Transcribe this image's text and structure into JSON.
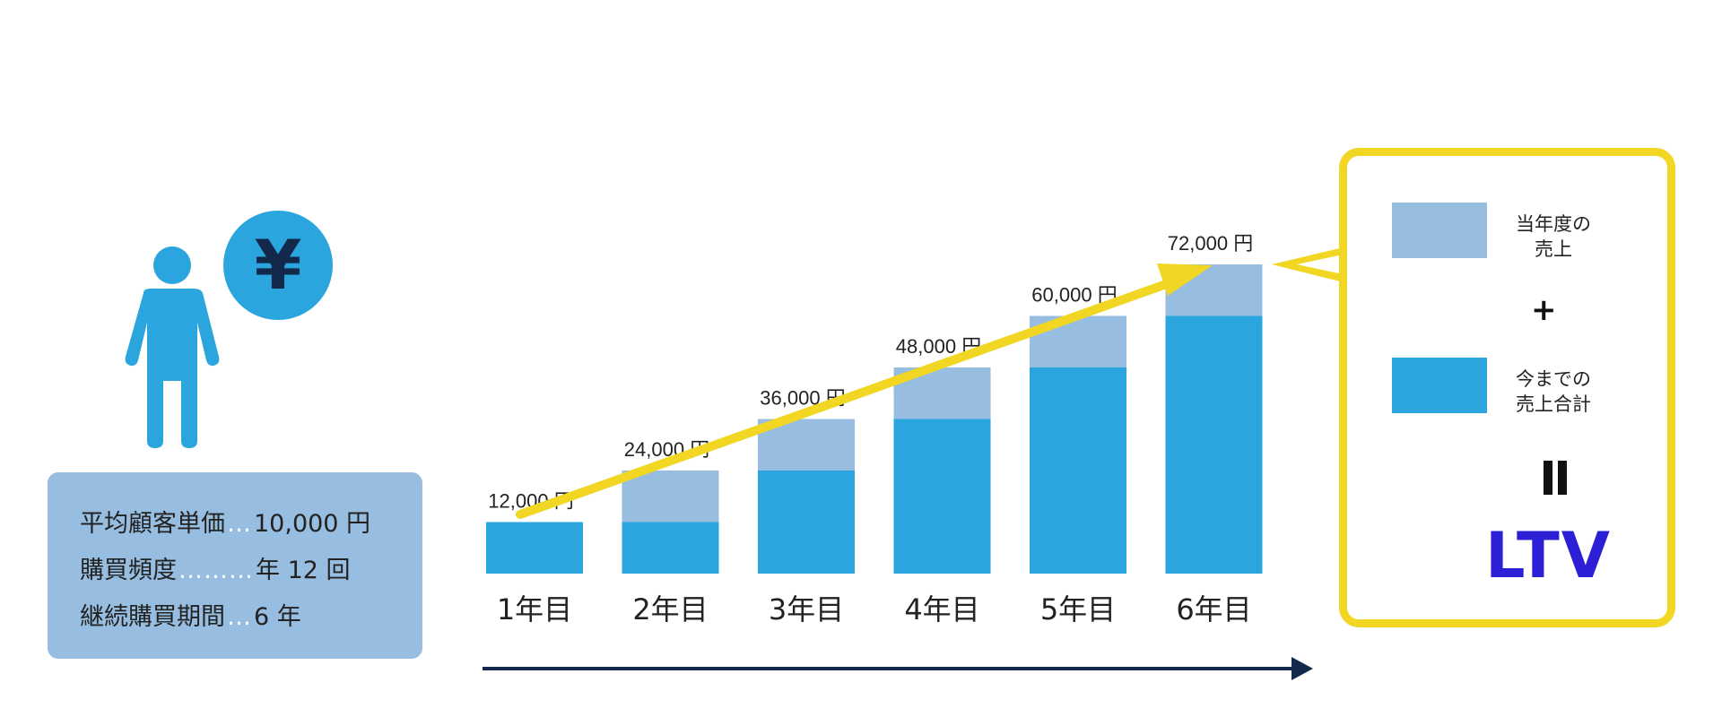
{
  "customer": {
    "stats": [
      {
        "label": "平均顧客単価",
        "dots": "…",
        "value": "10,000 円"
      },
      {
        "label": "購買頻度",
        "dots": "………",
        "value": "年 12 回"
      },
      {
        "label": "継続購買期間",
        "dots": "…",
        "value": "6 年"
      }
    ],
    "coin_symbol": "¥",
    "person_icon": "person-icon",
    "coin_icon": "yen-coin-icon"
  },
  "chart_data": {
    "type": "bar",
    "stacked": true,
    "categories": [
      "1年目",
      "2年目",
      "3年目",
      "4年目",
      "5年目",
      "6年目"
    ],
    "series": [
      {
        "name": "今までの売上合計",
        "values": [
          12000,
          12000,
          24000,
          36000,
          48000,
          60000
        ],
        "color": "#2ba5de"
      },
      {
        "name": "当年度の売上",
        "values": [
          0,
          12000,
          12000,
          12000,
          12000,
          12000
        ],
        "color": "#97bde0"
      }
    ],
    "totals": [
      12000,
      24000,
      36000,
      48000,
      60000,
      72000
    ],
    "total_labels": [
      "12,000 円",
      "24,000 円",
      "36,000 円",
      "48,000 円",
      "60,000 円",
      "72,000 円"
    ],
    "ylim": [
      0,
      72000
    ],
    "grid": false,
    "trend_arrow_color": "#f2d624",
    "time_axis_arrow_color": "#13294b"
  },
  "legend": {
    "items": [
      {
        "label_line1": "当年度の",
        "label_line2": "売上",
        "color": "#97bde0"
      },
      {
        "label_line1": "今までの",
        "label_line2": "売上合計",
        "color": "#2ba5de"
      }
    ],
    "plus": "+",
    "result": "LTV",
    "border_color": "#f2d624"
  }
}
